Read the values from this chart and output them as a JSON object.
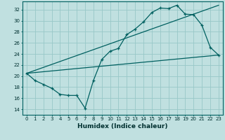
{
  "xlabel": "Humidex (Indice chaleur)",
  "bg_color": "#c0e0e0",
  "line_color": "#006060",
  "grid_color": "#98c8c8",
  "xlim": [
    -0.5,
    23.5
  ],
  "ylim": [
    13.0,
    33.5
  ],
  "xticks": [
    0,
    1,
    2,
    3,
    4,
    5,
    6,
    7,
    8,
    9,
    10,
    11,
    12,
    13,
    14,
    15,
    16,
    17,
    18,
    19,
    20,
    21,
    22,
    23
  ],
  "yticks": [
    14,
    16,
    18,
    20,
    22,
    24,
    26,
    28,
    30,
    32
  ],
  "scatter_x": [
    0,
    1,
    2,
    3,
    4,
    5,
    6,
    7,
    8,
    9,
    10,
    11,
    12,
    13,
    14,
    15,
    16,
    17,
    18,
    19,
    20,
    21,
    22,
    23
  ],
  "scatter_y": [
    20.5,
    19.2,
    18.5,
    17.8,
    16.7,
    16.5,
    16.5,
    14.2,
    19.2,
    23.0,
    24.5,
    25.0,
    27.5,
    28.5,
    29.8,
    31.5,
    32.3,
    32.2,
    32.8,
    31.2,
    31.1,
    29.2,
    25.2,
    23.8
  ],
  "line1_x": [
    0,
    23
  ],
  "line1_y": [
    20.5,
    23.8
  ],
  "line2_x": [
    0,
    23
  ],
  "line2_y": [
    20.5,
    32.8
  ],
  "tick_fontsize": 5.0,
  "xlabel_fontsize": 6.5
}
